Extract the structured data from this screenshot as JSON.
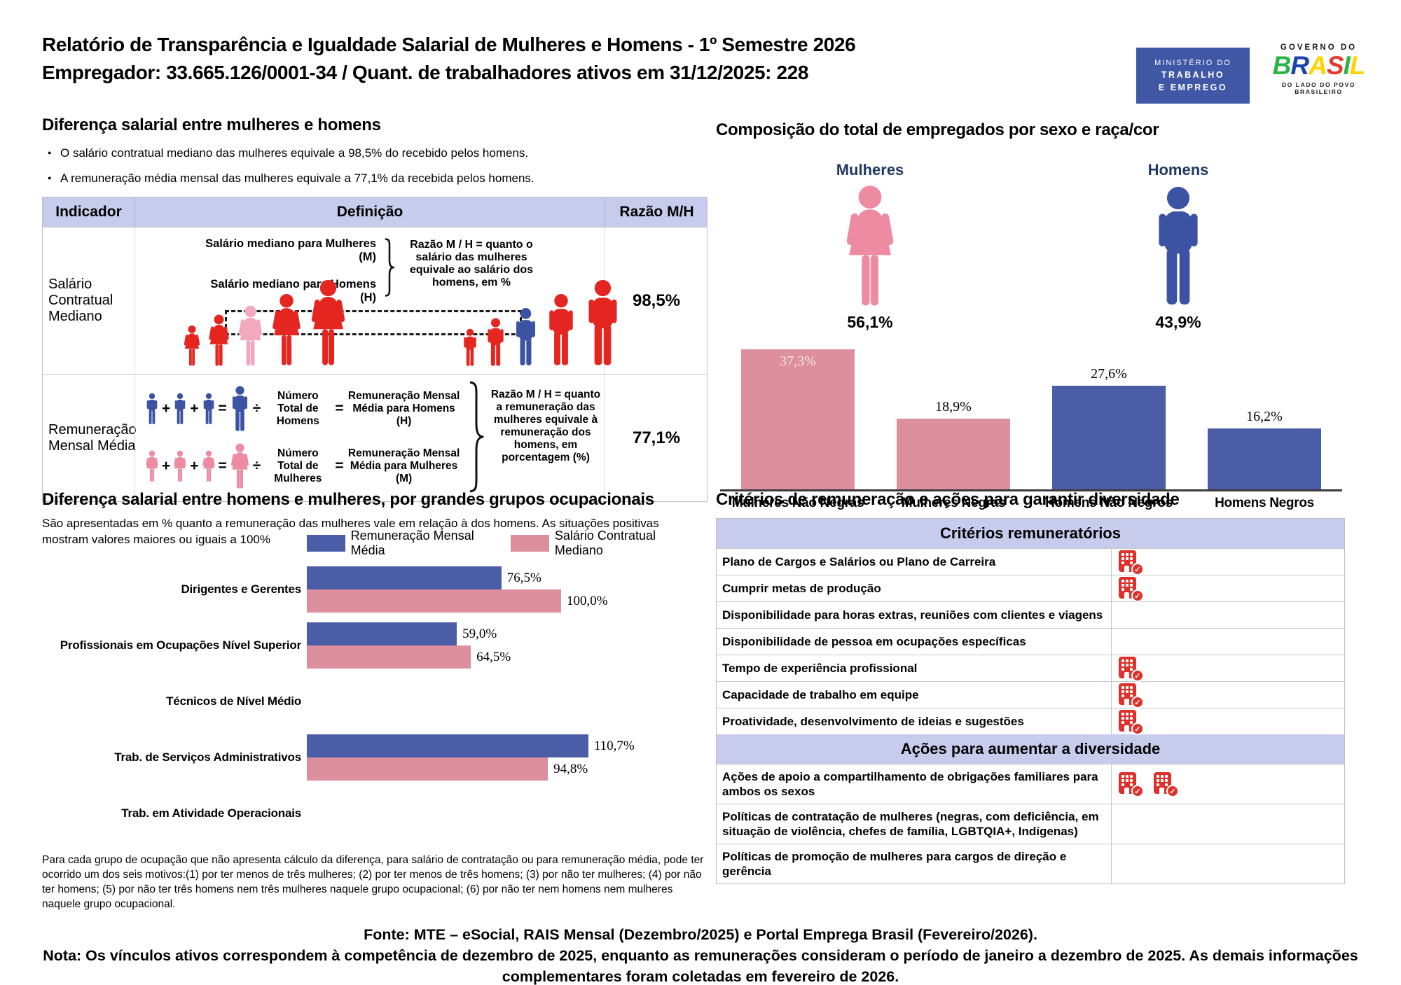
{
  "colors": {
    "red": "#e52620",
    "pink_highlight": "#f2a9be",
    "pink": "#dd8f9e",
    "blue": "#4a5da6",
    "blue_icon": "#3c53a4",
    "pink_icon": "#ec8ba2",
    "lavender": "#c7cbec",
    "navy": "#1f3864",
    "icon_red": "#df312c"
  },
  "header": {
    "title_line1": "Relatório de Transparência e Igualdade Salarial de Mulheres e Homens - 1º Semestre 2026",
    "title_line2": "Empregador: 33.665.126/0001-34 / Quant. de trabalhadores ativos em 31/12/2025: 228",
    "mte_logo": {
      "line1": "MINISTÉRIO DO",
      "line2": "TRABALHO",
      "line3": "E EMPREGO"
    },
    "gov_logo": {
      "top": "GOVERNO DO",
      "name": "BRASIL",
      "bottom": "DO LADO DO POVO BRASILEIRO"
    }
  },
  "salary_gap": {
    "title": "Diferença salarial entre mulheres e homens",
    "bullets": [
      "O salário contratual mediano das mulheres equivale a 98,5% do recebido pelos homens.",
      "A remuneração média mensal das mulheres equivale a 77,1% da recebida pelos homens."
    ],
    "table": {
      "headers": [
        "Indicador",
        "Definição",
        "Razão M/H"
      ],
      "rows": [
        {
          "indicator": "Salário Contratual Mediano",
          "def_line1": "Salário mediano para Mulheres (M)",
          "def_line2": "Salário mediano para Homens (H)",
          "def_note": "Razão M / H = quanto o salário das mulheres equivale ao salário dos homens, em %",
          "ratio": "98,5%"
        },
        {
          "indicator": "Remuneração Mensal Média",
          "op_plus": "+",
          "op_equals": "=",
          "op_divide": "÷",
          "men_divisor": "Número Total de Homens",
          "men_result": "Remuneração Mensal Média para Homens (H)",
          "women_divisor": "Número Total de Mulheres",
          "women_result": "Remuneração Mensal Média para Mulheres (M)",
          "def_note": "Razão M / H = quanto a remuneração das mulheres equivale à remuneração dos homens, em porcentagem (%)",
          "ratio": "77,1%"
        }
      ]
    }
  },
  "composition": {
    "title": "Composição do total de empregados por sexo e raça/cor",
    "women_label": "Mulheres",
    "women_pct": "56,1%",
    "men_label": "Homens",
    "men_pct": "43,9%"
  },
  "occupational": {
    "title": "Diferença salarial entre homens e mulheres, por grandes grupos ocupacionais",
    "subtitle": "São apresentadas em % quanto a remuneração das mulheres vale em relação à dos homens. As situações positivas mostram valores maiores ou iguais a 100%",
    "footnote": "Para cada grupo de ocupação que não apresenta cálculo da diferença, para salário de contratação ou para remuneração média, pode ter ocorrido um dos seis motivos:(1) por ter menos de três mulheres; (2) por ter menos de três homens; (3) por não ter mulheres; (4) por não ter homens; (5) por não ter três homens nem três mulheres naquele grupo ocupacional; (6) por não ter nem homens nem mulheres naquele grupo ocupacional."
  },
  "criteria": {
    "title": "Critérios de remuneração e ações para garantir diversidade",
    "sections": [
      {
        "header": "Critérios remuneratórios",
        "rows": [
          {
            "label": "Plano de Cargos e Salários ou Plano de Carreira",
            "checks": 1
          },
          {
            "label": "Cumprir metas de produção",
            "checks": 1
          },
          {
            "label": "Disponibilidade para horas extras, reuniões com clientes e viagens",
            "checks": 0
          },
          {
            "label": "Disponibilidade de pessoa em ocupações específicas",
            "checks": 0
          },
          {
            "label": "Tempo de experiência profissional",
            "checks": 1
          },
          {
            "label": "Capacidade de trabalho em equipe",
            "checks": 1
          },
          {
            "label": "Proatividade, desenvolvimento de ideias e sugestões",
            "checks": 1
          }
        ]
      },
      {
        "header": "Ações para aumentar a diversidade",
        "rows": [
          {
            "label": "Ações de apoio a compartilhamento de obrigações familiares para ambos os sexos",
            "checks": 2
          },
          {
            "label": "Políticas de contratação de mulheres (negras, com deficiência, em situação de violência, chefes de família, LGBTQIA+, Indígenas)",
            "checks": 0
          },
          {
            "label": "Políticas de promoção de mulheres para cargos de direção e gerência",
            "checks": 0
          }
        ]
      }
    ]
  },
  "footer": {
    "fonte": "Fonte: MTE – eSocial, RAIS Mensal (Dezembro/2025) e Portal Emprega Brasil (Fevereiro/2026).",
    "nota": "Nota: Os vínculos ativos correspondem à competência de dezembro de 2025, enquanto as remunerações consideram o período de janeiro a dezembro de 2025. As demais informações complementares foram coletadas em fevereiro de 2026."
  },
  "chart_data": [
    {
      "type": "bar",
      "title": "Composição do total de empregados por sexo e raça/cor",
      "categories": [
        "Mulheres Não Negras",
        "Mulheres Negras",
        "Homens Não Negros",
        "Homens Negros"
      ],
      "values": [
        37.3,
        18.9,
        27.6,
        16.2
      ],
      "value_labels": [
        "37,3%",
        "18,9%",
        "27,6%",
        "16,2%"
      ],
      "colors": [
        "#dd8f9e",
        "#dd8f9e",
        "#4a5da6",
        "#4a5da6"
      ],
      "label_inside": [
        true,
        false,
        false,
        false
      ],
      "unit": "%",
      "ylim": [
        0,
        40
      ],
      "summary": {
        "Mulheres": 56.1,
        "Homens": 43.9
      }
    },
    {
      "type": "bar",
      "orientation": "horizontal",
      "title": "Diferença salarial entre homens e mulheres, por grandes grupos ocupacionais",
      "categories": [
        "Dirigentes e Gerentes",
        "Profissionais em Ocupações Nível Superior",
        "Técnicos de Nível Médio",
        "Trab. de Serviços Administrativos",
        "Trab. em Atividade Operacionais"
      ],
      "series": [
        {
          "name": "Remuneração Mensal Média",
          "color": "#4a5da6",
          "values": [
            76.5,
            59.0,
            null,
            110.7,
            null
          ],
          "value_labels": [
            "76,5%",
            "59,0%",
            "",
            "110,7%",
            ""
          ]
        },
        {
          "name": "Salário Contratual Mediano",
          "color": "#dd8f9e",
          "values": [
            100.0,
            64.5,
            null,
            94.8,
            null
          ],
          "value_labels": [
            "100,0%",
            "64,5%",
            "",
            "94,8%",
            ""
          ]
        }
      ],
      "unit": "%",
      "xlim": [
        0,
        115
      ],
      "legend_position": "top"
    }
  ]
}
